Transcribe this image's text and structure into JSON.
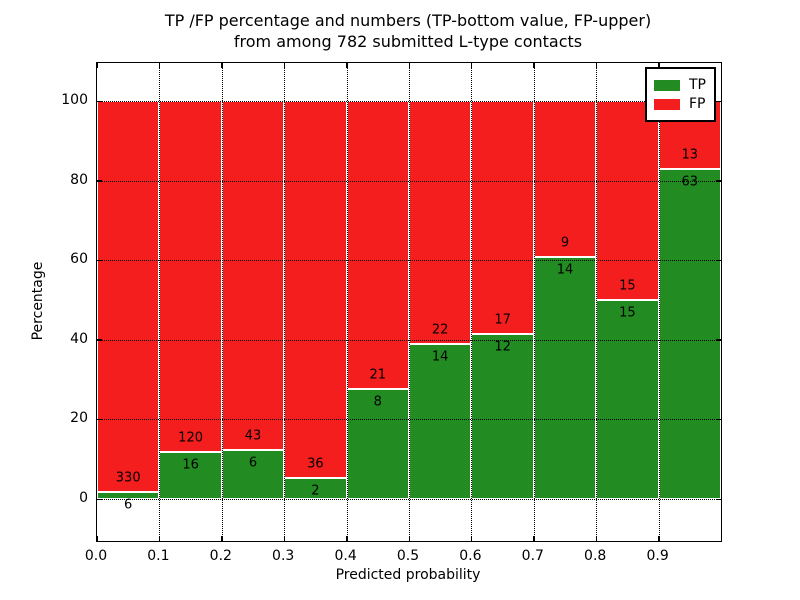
{
  "figure": {
    "title_line1": "TP /FP percentage and numbers (TP-bottom value, FP-upper)",
    "title_line2": "from among 782 submitted L-type contacts"
  },
  "chart_data": {
    "type": "bar",
    "stacked": true,
    "title": "TP /FP percentage and numbers (TP-bottom value, FP-upper) from among 782 submitted L-type contacts",
    "xlabel": "Predicted probability",
    "ylabel": "Percentage",
    "total_contacts": 782,
    "categories": [
      "0.0-0.1",
      "0.1-0.2",
      "0.2-0.3",
      "0.3-0.4",
      "0.4-0.5",
      "0.5-0.6",
      "0.6-0.7",
      "0.7-0.8",
      "0.8-0.9",
      "0.9-1.0"
    ],
    "series": [
      {
        "name": "TP",
        "color": "#228b22",
        "counts": [
          6,
          16,
          6,
          2,
          8,
          14,
          12,
          14,
          15,
          63
        ]
      },
      {
        "name": "FP",
        "color": "#f41e1e",
        "counts": [
          330,
          120,
          43,
          36,
          21,
          22,
          17,
          9,
          15,
          13
        ]
      }
    ],
    "tp_percent": [
      1.79,
      11.76,
      12.24,
      5.26,
      27.59,
      38.89,
      41.38,
      60.87,
      50.0,
      82.89
    ],
    "xtick_labels": [
      "0.0",
      "0.1",
      "0.2",
      "0.3",
      "0.4",
      "0.5",
      "0.6",
      "0.7",
      "0.8",
      "0.9"
    ],
    "ytick_labels": [
      "0",
      "20",
      "40",
      "60",
      "80",
      "100"
    ],
    "ytick_values": [
      0,
      20,
      40,
      60,
      80,
      100
    ],
    "xlim": [
      0.0,
      1.0
    ],
    "ylim": [
      -11,
      110
    ],
    "grid": "dotted",
    "legend": {
      "position": "upper right",
      "entries": [
        {
          "label": "TP",
          "color": "#228b22"
        },
        {
          "label": "FP",
          "color": "#f41e1e"
        }
      ]
    }
  }
}
